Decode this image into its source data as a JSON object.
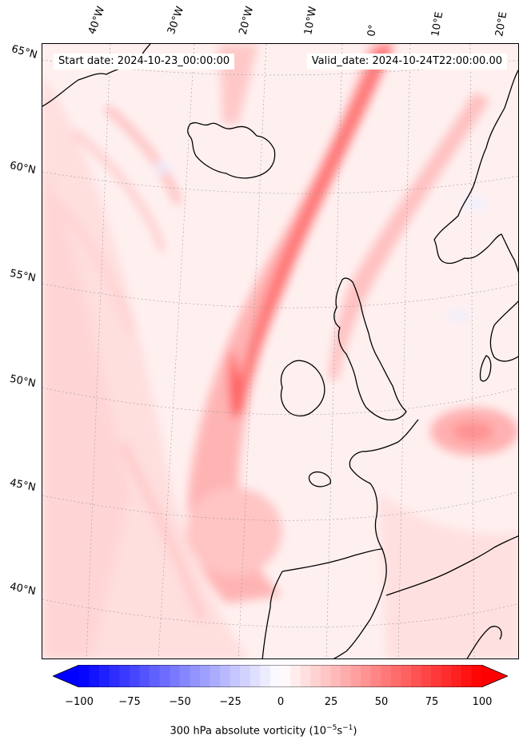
{
  "annotations": {
    "start_date": "Start date: 2024-10-23_00:00:00",
    "valid_date": "Valid_date: 2024-10-24T22:00:00.00"
  },
  "longitude_labels": [
    "40°W",
    "30°W",
    "20°W",
    "10°W",
    "0°",
    "10°E",
    "20°E"
  ],
  "latitude_labels": [
    "65°N",
    "60°N",
    "55°N",
    "50°N",
    "45°N",
    "40°N"
  ],
  "colorbar": {
    "ticks": [
      "−100",
      "−75",
      "−50",
      "−25",
      "0",
      "25",
      "50",
      "75",
      "100"
    ],
    "label": "300 hPa absolute vorticity (10",
    "label_exp1": "−5",
    "label_mid": "s",
    "label_exp2": "−1",
    "label_end": ")",
    "min": -100,
    "max": 100,
    "low_color": "#0000ff",
    "high_color": "#ff0000",
    "colormap": "bwr"
  },
  "map": {
    "field": "300 hPa absolute vorticity",
    "coastline_color": "#000000",
    "gridlines": "dotted"
  }
}
